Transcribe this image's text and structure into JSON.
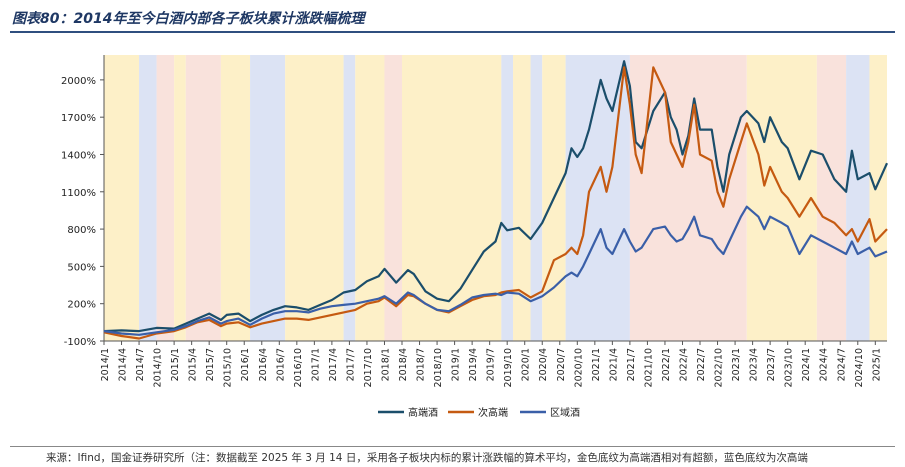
{
  "title": "图表80：2014年至今白酒内部各子板块累计涨跌幅梳理",
  "note": "来源：Ifind，国金证券研究所（注：数据截至 2025 年 3 月 14 日，采用各子板块内标的累计涨跌幅的算术平均，金色底纹为高端酒相对有超额，蓝色底纹为次高端",
  "colors": {
    "gold_band": "#fdf0c8",
    "blue_band": "#dce3f4",
    "pink_band": "#f9e2dc",
    "high_end": "#1b4e6b",
    "sub_high_end": "#c55a11",
    "regional": "#3a5fa8"
  },
  "chart_data": {
    "type": "line",
    "title": "",
    "xlabel": "",
    "ylabel": "",
    "ylim": [
      -100,
      2200
    ],
    "yticks": [
      -100,
      200,
      500,
      800,
      1100,
      1400,
      1700,
      2000
    ],
    "ytick_labels": [
      "-100%",
      "200%",
      "500%",
      "800%",
      "1100%",
      "1400%",
      "1700%",
      "2000%"
    ],
    "x_start": "2014/1",
    "x_end": "2025/3",
    "xtick_labels": [
      "2014/1",
      "2014/4",
      "2014/7",
      "2014/10",
      "2015/1",
      "2015/4",
      "2015/7",
      "2015/10",
      "2016/1",
      "2016/4",
      "2016/7",
      "2016/10",
      "2017/1",
      "2017/4",
      "2017/7",
      "2017/10",
      "2018/1",
      "2018/4",
      "2018/7",
      "2018/10",
      "2019/1",
      "2019/4",
      "2019/7",
      "2019/10",
      "2020/1",
      "2020/4",
      "2020/7",
      "2020/10",
      "2021/1",
      "2021/4",
      "2021/7",
      "2021/10",
      "2022/1",
      "2022/4",
      "2022/7",
      "2022/10",
      "2023/1",
      "2023/4",
      "2023/7",
      "2023/10",
      "2024/1",
      "2024/4",
      "2024/7",
      "2024/10",
      "2025/1"
    ],
    "bands": [
      {
        "from": "2014/1",
        "to": "2014/7",
        "type": "gold"
      },
      {
        "from": "2014/7",
        "to": "2014/10",
        "type": "blue"
      },
      {
        "from": "2014/10",
        "to": "2015/1",
        "type": "pink"
      },
      {
        "from": "2015/1",
        "to": "2015/3",
        "type": "gold"
      },
      {
        "from": "2015/3",
        "to": "2015/9",
        "type": "pink"
      },
      {
        "from": "2015/9",
        "to": "2016/2",
        "type": "gold"
      },
      {
        "from": "2016/2",
        "to": "2016/8",
        "type": "blue"
      },
      {
        "from": "2016/8",
        "to": "2017/6",
        "type": "gold"
      },
      {
        "from": "2017/6",
        "to": "2017/8",
        "type": "blue"
      },
      {
        "from": "2017/8",
        "to": "2018/1",
        "type": "gold"
      },
      {
        "from": "2018/1",
        "to": "2018/4",
        "type": "pink"
      },
      {
        "from": "2018/4",
        "to": "2019/9",
        "type": "gold"
      },
      {
        "from": "2019/9",
        "to": "2019/11",
        "type": "blue"
      },
      {
        "from": "2019/11",
        "to": "2020/2",
        "type": "gold"
      },
      {
        "from": "2020/2",
        "to": "2020/4",
        "type": "blue"
      },
      {
        "from": "2020/4",
        "to": "2020/8",
        "type": "gold"
      },
      {
        "from": "2020/8",
        "to": "2021/7",
        "type": "blue"
      },
      {
        "from": "2021/7",
        "to": "2023/3",
        "type": "pink"
      },
      {
        "from": "2023/3",
        "to": "2024/3",
        "type": "gold"
      },
      {
        "from": "2024/3",
        "to": "2024/8",
        "type": "pink"
      },
      {
        "from": "2024/8",
        "to": "2024/12",
        "type": "blue"
      },
      {
        "from": "2024/12",
        "to": "2025/3",
        "type": "gold"
      }
    ],
    "series": [
      {
        "name": "高端酒",
        "color": "#1b4e6b",
        "points": [
          [
            "2014/1",
            -20
          ],
          [
            "2014/4",
            -15
          ],
          [
            "2014/7",
            -20
          ],
          [
            "2014/10",
            5
          ],
          [
            "2015/1",
            0
          ],
          [
            "2015/3",
            40
          ],
          [
            "2015/5",
            80
          ],
          [
            "2015/7",
            120
          ],
          [
            "2015/9",
            70
          ],
          [
            "2015/10",
            110
          ],
          [
            "2015/12",
            120
          ],
          [
            "2016/2",
            60
          ],
          [
            "2016/4",
            110
          ],
          [
            "2016/6",
            150
          ],
          [
            "2016/8",
            180
          ],
          [
            "2016/10",
            170
          ],
          [
            "2016/12",
            150
          ],
          [
            "2017/2",
            190
          ],
          [
            "2017/4",
            230
          ],
          [
            "2017/6",
            290
          ],
          [
            "2017/8",
            310
          ],
          [
            "2017/10",
            380
          ],
          [
            "2017/12",
            420
          ],
          [
            "2018/1",
            480
          ],
          [
            "2018/3",
            370
          ],
          [
            "2018/5",
            470
          ],
          [
            "2018/6",
            440
          ],
          [
            "2018/8",
            300
          ],
          [
            "2018/10",
            240
          ],
          [
            "2018/12",
            220
          ],
          [
            "2019/2",
            320
          ],
          [
            "2019/4",
            470
          ],
          [
            "2019/6",
            620
          ],
          [
            "2019/8",
            700
          ],
          [
            "2019/9",
            850
          ],
          [
            "2019/10",
            790
          ],
          [
            "2019/12",
            810
          ],
          [
            "2020/2",
            720
          ],
          [
            "2020/4",
            850
          ],
          [
            "2020/6",
            1050
          ],
          [
            "2020/8",
            1250
          ],
          [
            "2020/9",
            1450
          ],
          [
            "2020/10",
            1380
          ],
          [
            "2020/11",
            1450
          ],
          [
            "2020/12",
            1600
          ],
          [
            "2021/2",
            2000
          ],
          [
            "2021/3",
            1850
          ],
          [
            "2021/4",
            1750
          ],
          [
            "2021/6",
            2150
          ],
          [
            "2021/7",
            1950
          ],
          [
            "2021/8",
            1500
          ],
          [
            "2021/9",
            1450
          ],
          [
            "2021/11",
            1750
          ],
          [
            "2022/1",
            1900
          ],
          [
            "2022/2",
            1700
          ],
          [
            "2022/3",
            1600
          ],
          [
            "2022/4",
            1400
          ],
          [
            "2022/5",
            1550
          ],
          [
            "2022/6",
            1850
          ],
          [
            "2022/7",
            1600
          ],
          [
            "2022/9",
            1600
          ],
          [
            "2022/10",
            1300
          ],
          [
            "2022/11",
            1100
          ],
          [
            "2022/12",
            1400
          ],
          [
            "2023/2",
            1700
          ],
          [
            "2023/3",
            1750
          ],
          [
            "2023/5",
            1650
          ],
          [
            "2023/6",
            1500
          ],
          [
            "2023/7",
            1700
          ],
          [
            "2023/9",
            1500
          ],
          [
            "2023/10",
            1450
          ],
          [
            "2023/12",
            1200
          ],
          [
            "2024/2",
            1430
          ],
          [
            "2024/4",
            1400
          ],
          [
            "2024/6",
            1200
          ],
          [
            "2024/8",
            1100
          ],
          [
            "2024/9",
            1430
          ],
          [
            "2024/10",
            1200
          ],
          [
            "2024/12",
            1250
          ],
          [
            "2025/1",
            1120
          ],
          [
            "2025/3",
            1330
          ]
        ]
      },
      {
        "name": "次高端",
        "color": "#c55a11",
        "points": [
          [
            "2014/1",
            -30
          ],
          [
            "2014/4",
            -60
          ],
          [
            "2014/7",
            -80
          ],
          [
            "2014/10",
            -40
          ],
          [
            "2015/1",
            -20
          ],
          [
            "2015/3",
            10
          ],
          [
            "2015/5",
            50
          ],
          [
            "2015/7",
            70
          ],
          [
            "2015/9",
            20
          ],
          [
            "2015/10",
            40
          ],
          [
            "2015/12",
            50
          ],
          [
            "2016/2",
            10
          ],
          [
            "2016/4",
            40
          ],
          [
            "2016/6",
            60
          ],
          [
            "2016/8",
            80
          ],
          [
            "2016/10",
            80
          ],
          [
            "2016/12",
            70
          ],
          [
            "2017/2",
            90
          ],
          [
            "2017/4",
            110
          ],
          [
            "2017/6",
            130
          ],
          [
            "2017/8",
            150
          ],
          [
            "2017/10",
            200
          ],
          [
            "2017/12",
            220
          ],
          [
            "2018/1",
            250
          ],
          [
            "2018/3",
            180
          ],
          [
            "2018/5",
            270
          ],
          [
            "2018/6",
            260
          ],
          [
            "2018/8",
            200
          ],
          [
            "2018/10",
            150
          ],
          [
            "2018/12",
            130
          ],
          [
            "2019/2",
            180
          ],
          [
            "2019/4",
            230
          ],
          [
            "2019/6",
            260
          ],
          [
            "2019/8",
            270
          ],
          [
            "2019/9",
            290
          ],
          [
            "2019/10",
            300
          ],
          [
            "2019/12",
            310
          ],
          [
            "2020/2",
            250
          ],
          [
            "2020/4",
            300
          ],
          [
            "2020/6",
            550
          ],
          [
            "2020/8",
            600
          ],
          [
            "2020/9",
            650
          ],
          [
            "2020/10",
            600
          ],
          [
            "2020/11",
            750
          ],
          [
            "2020/12",
            1100
          ],
          [
            "2021/2",
            1300
          ],
          [
            "2021/3",
            1100
          ],
          [
            "2021/4",
            1300
          ],
          [
            "2021/6",
            2100
          ],
          [
            "2021/7",
            1800
          ],
          [
            "2021/8",
            1400
          ],
          [
            "2021/9",
            1250
          ],
          [
            "2021/11",
            2100
          ],
          [
            "2022/1",
            1900
          ],
          [
            "2022/2",
            1500
          ],
          [
            "2022/3",
            1400
          ],
          [
            "2022/4",
            1300
          ],
          [
            "2022/5",
            1500
          ],
          [
            "2022/6",
            1800
          ],
          [
            "2022/7",
            1400
          ],
          [
            "2022/9",
            1350
          ],
          [
            "2022/10",
            1100
          ],
          [
            "2022/11",
            980
          ],
          [
            "2022/12",
            1200
          ],
          [
            "2023/2",
            1500
          ],
          [
            "2023/3",
            1650
          ],
          [
            "2023/5",
            1400
          ],
          [
            "2023/6",
            1150
          ],
          [
            "2023/7",
            1300
          ],
          [
            "2023/9",
            1100
          ],
          [
            "2023/10",
            1050
          ],
          [
            "2023/12",
            900
          ],
          [
            "2024/2",
            1050
          ],
          [
            "2024/4",
            900
          ],
          [
            "2024/6",
            850
          ],
          [
            "2024/8",
            750
          ],
          [
            "2024/9",
            800
          ],
          [
            "2024/10",
            700
          ],
          [
            "2024/12",
            880
          ],
          [
            "2025/1",
            700
          ],
          [
            "2025/3",
            800
          ]
        ]
      },
      {
        "name": "区域酒",
        "color": "#3a5fa8",
        "points": [
          [
            "2014/1",
            -20
          ],
          [
            "2014/4",
            -40
          ],
          [
            "2014/7",
            -50
          ],
          [
            "2014/10",
            -30
          ],
          [
            "2015/1",
            -10
          ],
          [
            "2015/3",
            20
          ],
          [
            "2015/5",
            60
          ],
          [
            "2015/7",
            90
          ],
          [
            "2015/9",
            40
          ],
          [
            "2015/10",
            60
          ],
          [
            "2015/12",
            80
          ],
          [
            "2016/2",
            30
          ],
          [
            "2016/4",
            80
          ],
          [
            "2016/6",
            120
          ],
          [
            "2016/8",
            140
          ],
          [
            "2016/10",
            140
          ],
          [
            "2016/12",
            130
          ],
          [
            "2017/2",
            160
          ],
          [
            "2017/4",
            180
          ],
          [
            "2017/6",
            190
          ],
          [
            "2017/8",
            200
          ],
          [
            "2017/10",
            220
          ],
          [
            "2017/12",
            240
          ],
          [
            "2018/1",
            260
          ],
          [
            "2018/3",
            200
          ],
          [
            "2018/5",
            290
          ],
          [
            "2018/6",
            270
          ],
          [
            "2018/8",
            200
          ],
          [
            "2018/10",
            150
          ],
          [
            "2018/12",
            140
          ],
          [
            "2019/2",
            190
          ],
          [
            "2019/4",
            250
          ],
          [
            "2019/6",
            270
          ],
          [
            "2019/8",
            280
          ],
          [
            "2019/9",
            270
          ],
          [
            "2019/10",
            290
          ],
          [
            "2019/12",
            280
          ],
          [
            "2020/2",
            220
          ],
          [
            "2020/4",
            260
          ],
          [
            "2020/6",
            330
          ],
          [
            "2020/8",
            420
          ],
          [
            "2020/9",
            450
          ],
          [
            "2020/10",
            420
          ],
          [
            "2020/11",
            500
          ],
          [
            "2020/12",
            600
          ],
          [
            "2021/2",
            800
          ],
          [
            "2021/3",
            650
          ],
          [
            "2021/4",
            600
          ],
          [
            "2021/6",
            800
          ],
          [
            "2021/7",
            700
          ],
          [
            "2021/8",
            620
          ],
          [
            "2021/9",
            650
          ],
          [
            "2021/11",
            800
          ],
          [
            "2022/1",
            820
          ],
          [
            "2022/2",
            750
          ],
          [
            "2022/3",
            700
          ],
          [
            "2022/4",
            720
          ],
          [
            "2022/5",
            800
          ],
          [
            "2022/6",
            900
          ],
          [
            "2022/7",
            750
          ],
          [
            "2022/9",
            720
          ],
          [
            "2022/10",
            650
          ],
          [
            "2022/11",
            600
          ],
          [
            "2022/12",
            700
          ],
          [
            "2023/2",
            900
          ],
          [
            "2023/3",
            980
          ],
          [
            "2023/5",
            900
          ],
          [
            "2023/6",
            800
          ],
          [
            "2023/7",
            900
          ],
          [
            "2023/9",
            850
          ],
          [
            "2023/10",
            820
          ],
          [
            "2023/12",
            600
          ],
          [
            "2024/2",
            750
          ],
          [
            "2024/4",
            700
          ],
          [
            "2024/6",
            650
          ],
          [
            "2024/8",
            600
          ],
          [
            "2024/9",
            700
          ],
          [
            "2024/10",
            600
          ],
          [
            "2024/12",
            650
          ],
          [
            "2025/1",
            580
          ],
          [
            "2025/3",
            620
          ]
        ]
      }
    ],
    "legend_position": "bottom"
  }
}
